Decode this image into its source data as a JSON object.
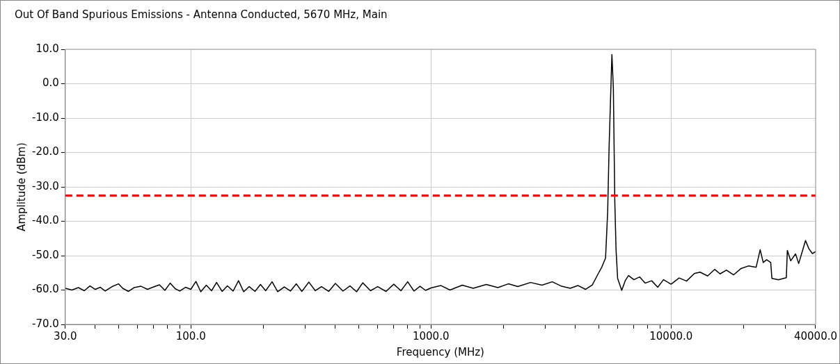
{
  "chart_data": {
    "type": "line",
    "title": "Out Of Band Spurious Emissions - Antenna Conducted, 5670 MHz, Main",
    "xlabel": "Frequency (MHz)",
    "ylabel": "Amplitude (dBm)",
    "log": "x",
    "grid": true,
    "legend": false,
    "marker": "none",
    "line_style": "solid",
    "xlim": [
      30,
      40000
    ],
    "ylim": [
      -70,
      10
    ],
    "xticks": [
      {
        "value": 30,
        "label": "30.0"
      },
      {
        "value": 40,
        "label": null
      },
      {
        "value": 50,
        "label": null
      },
      {
        "value": 60,
        "label": null
      },
      {
        "value": 70,
        "label": null
      },
      {
        "value": 80,
        "label": null
      },
      {
        "value": 90,
        "label": null
      },
      {
        "value": 100,
        "label": "100.0"
      },
      {
        "value": 200,
        "label": null
      },
      {
        "value": 300,
        "label": null
      },
      {
        "value": 400,
        "label": null
      },
      {
        "value": 500,
        "label": null
      },
      {
        "value": 600,
        "label": null
      },
      {
        "value": 700,
        "label": null
      },
      {
        "value": 800,
        "label": null
      },
      {
        "value": 900,
        "label": null
      },
      {
        "value": 1000,
        "label": "1000.0"
      },
      {
        "value": 2000,
        "label": null
      },
      {
        "value": 3000,
        "label": null
      },
      {
        "value": 4000,
        "label": null
      },
      {
        "value": 5000,
        "label": null
      },
      {
        "value": 6000,
        "label": null
      },
      {
        "value": 7000,
        "label": null
      },
      {
        "value": 8000,
        "label": null
      },
      {
        "value": 9000,
        "label": null
      },
      {
        "value": 10000,
        "label": "10000.0"
      },
      {
        "value": 20000,
        "label": null
      },
      {
        "value": 30000,
        "label": null
      },
      {
        "value": 40000,
        "label": "40000.0"
      }
    ],
    "yticks": [
      {
        "value": 10,
        "label": "10.0"
      },
      {
        "value": 0,
        "label": "0.0"
      },
      {
        "value": -10,
        "label": "-10.0"
      },
      {
        "value": -20,
        "label": "-20.0"
      },
      {
        "value": -30,
        "label": "-30.0"
      },
      {
        "value": -40,
        "label": "-40.0"
      },
      {
        "value": -50,
        "label": "-50.0"
      },
      {
        "value": -60,
        "label": "-60.0"
      },
      {
        "value": -70,
        "label": "-70.0"
      }
    ],
    "ref_lines": [
      {
        "axis": "y",
        "value": -32.5,
        "color": "#ff0000",
        "line_style": "dashed"
      }
    ],
    "series": [
      {
        "color": "#000000",
        "x": [
          30,
          32,
          34,
          36,
          38,
          40,
          42,
          44,
          47,
          50,
          52,
          55,
          58,
          62,
          66,
          70,
          74,
          78,
          82,
          86,
          90,
          95,
          100,
          105,
          110,
          116,
          122,
          128,
          135,
          142,
          150,
          158,
          166,
          175,
          185,
          195,
          205,
          218,
          230,
          245,
          260,
          275,
          290,
          310,
          330,
          350,
          375,
          400,
          430,
          460,
          490,
          520,
          560,
          600,
          650,
          700,
          750,
          800,
          850,
          900,
          950,
          1000,
          1100,
          1200,
          1350,
          1500,
          1700,
          1900,
          2100,
          2300,
          2600,
          2900,
          3200,
          3500,
          3800,
          4100,
          4400,
          4700,
          4950,
          5150,
          5335,
          5445,
          5520,
          5670,
          5750,
          5830,
          5900,
          5990,
          6230,
          6450,
          6650,
          7000,
          7400,
          7800,
          8300,
          8800,
          9300,
          10000,
          10800,
          11600,
          12500,
          13200,
          14200,
          15200,
          16000,
          17000,
          18200,
          19500,
          21000,
          22600,
          23500,
          24200,
          25000,
          26000,
          26300,
          28000,
          30200,
          30500,
          31500,
          33000,
          34000,
          35300,
          36300,
          37500,
          38800,
          40000
        ],
        "values": [
          -59.5,
          -60,
          -59.3,
          -60.2,
          -58.8,
          -59.8,
          -59.2,
          -60.3,
          -59,
          -58.2,
          -59.5,
          -60.4,
          -59.3,
          -58.9,
          -59.8,
          -59.1,
          -58.5,
          -60.1,
          -58,
          -59.6,
          -60.3,
          -59.2,
          -59.8,
          -57.5,
          -60.5,
          -58.6,
          -60.2,
          -57.8,
          -60.4,
          -58.8,
          -60.3,
          -57.3,
          -60.5,
          -59,
          -60.4,
          -58.4,
          -60.2,
          -57.6,
          -60.5,
          -59.1,
          -60.3,
          -58.2,
          -60.4,
          -57.7,
          -60.2,
          -59,
          -60.4,
          -58.1,
          -60.3,
          -58.8,
          -60.5,
          -57.9,
          -60.2,
          -59,
          -60.4,
          -58.3,
          -60.2,
          -57.6,
          -60.3,
          -58.9,
          -60.1,
          -59.4,
          -58.7,
          -60,
          -58.6,
          -59.5,
          -58.4,
          -59.3,
          -58.2,
          -59,
          -57.8,
          -58.6,
          -57.6,
          -58.9,
          -59.5,
          -58.7,
          -59.8,
          -58.5,
          -55.5,
          -53.3,
          -50.7,
          -37.2,
          -18.4,
          8.5,
          -1.2,
          -34.2,
          -48.2,
          -56.6,
          -60.1,
          -57.2,
          -55.8,
          -57,
          -56.2,
          -58,
          -57.3,
          -59.2,
          -57,
          -58.3,
          -56.5,
          -57.4,
          -55.2,
          -54.8,
          -55.9,
          -54,
          -55.3,
          -54.2,
          -55.6,
          -53.8,
          -53,
          -53.4,
          -48.3,
          -52,
          -51.2,
          -52,
          -56.6,
          -57,
          -56.4,
          -48.5,
          -51.5,
          -49.5,
          -52.3,
          -48.5,
          -45.6,
          -48,
          -49.4,
          -48.8
        ]
      }
    ]
  }
}
